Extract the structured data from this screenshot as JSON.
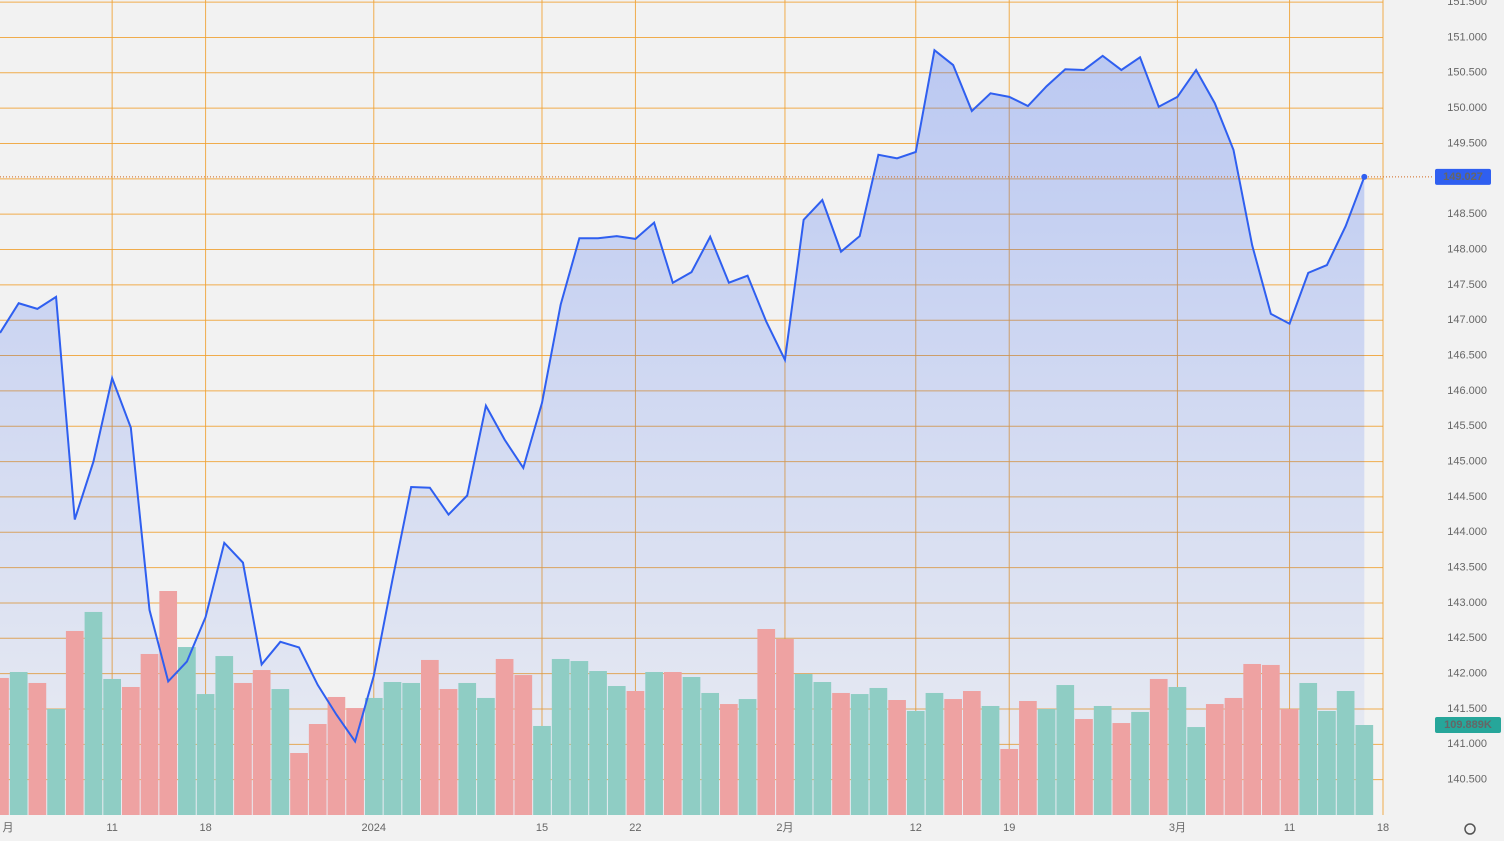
{
  "chart_data": {
    "type": "area",
    "categories": [
      "月",
      null,
      null,
      null,
      null,
      null,
      "11",
      null,
      null,
      null,
      null,
      "18",
      null,
      null,
      null,
      null,
      null,
      null,
      null,
      null,
      "2024",
      null,
      null,
      null,
      null,
      null,
      null,
      null,
      null,
      "15",
      null,
      null,
      null,
      null,
      "22",
      null,
      null,
      null,
      null,
      null,
      null,
      null,
      "2月",
      null,
      null,
      null,
      null,
      null,
      null,
      "12",
      null,
      null,
      null,
      null,
      "19",
      null,
      null,
      null,
      null,
      null,
      null,
      null,
      null,
      "3月",
      null,
      null,
      null,
      null,
      null,
      "11",
      null,
      null,
      null,
      null,
      "18"
    ],
    "series": [
      {
        "color": "#2f5ff0",
        "values": [
          146.82,
          147.24,
          147.16,
          147.33,
          144.18,
          145.0,
          146.18,
          145.48,
          142.9,
          141.89,
          142.17,
          142.8,
          143.85,
          143.57,
          142.13,
          142.45,
          142.37,
          141.84,
          141.42,
          141.04,
          141.97,
          143.33,
          144.64,
          144.63,
          144.25,
          144.52,
          145.79,
          145.31,
          144.91,
          145.83,
          147.22,
          148.16,
          148.16,
          148.19,
          148.15,
          148.38,
          147.53,
          147.68,
          148.18,
          147.53,
          147.63,
          146.98,
          146.44,
          148.42,
          148.7,
          147.97,
          148.19,
          149.34,
          149.29,
          149.38,
          150.82,
          150.61,
          149.96,
          150.21,
          150.16,
          150.03,
          150.31,
          150.55,
          150.54,
          150.74,
          150.54,
          150.72,
          150.02,
          150.16,
          150.54,
          150.07,
          149.41,
          148.06,
          147.09,
          146.95,
          147.67,
          147.78,
          148.33,
          149.027,
          null
        ]
      }
    ],
    "volume": {
      "values": [
        167.3,
        174.6,
        161.2,
        129.4,
        224.7,
        247.9,
        166.1,
        156.3,
        196.6,
        273.5,
        205.1,
        147.7,
        194.1,
        161.2,
        177.0,
        153.8,
        75.7,
        111.1,
        144.1,
        130.6,
        142.9,
        162.4,
        161.2,
        189.3,
        153.8,
        161.2,
        142.9,
        190.5,
        170.9,
        108.7,
        190.5,
        188.0,
        175.8,
        157.5,
        151.4,
        174.6,
        174.6,
        168.5,
        149.0,
        135.5,
        141.6,
        227.1,
        214.9,
        172.2,
        162.4,
        149.0,
        147.7,
        155.1,
        140.4,
        127.0,
        149.0,
        141.6,
        151.4,
        133.1,
        80.6,
        139.2,
        129.4,
        158.7,
        117.2,
        133.1,
        112.3,
        125.8,
        166.1,
        156.3,
        107.4,
        135.5,
        142.9,
        184.4,
        183.2,
        129.4,
        161.2,
        127.0,
        151.4,
        109.889,
        null
      ],
      "colors": [
        "r",
        "g",
        "r",
        "g",
        "r",
        "g",
        "g",
        "r",
        "r",
        "r",
        "g",
        "g",
        "g",
        "r",
        "r",
        "g",
        "r",
        "r",
        "r",
        "r",
        "g",
        "g",
        "g",
        "r",
        "r",
        "g",
        "g",
        "r",
        "r",
        "g",
        "g",
        "g",
        "g",
        "g",
        "r",
        "g",
        "r",
        "g",
        "g",
        "r",
        "g",
        "r",
        "r",
        "g",
        "g",
        "r",
        "g",
        "g",
        "r",
        "g",
        "g",
        "r",
        "r",
        "g",
        "r",
        "r",
        "g",
        "g",
        "r",
        "g",
        "r",
        "g",
        "r",
        "g",
        "g",
        "r",
        "r",
        "r",
        "r",
        "r",
        "g",
        "g",
        "g",
        "g",
        null
      ],
      "up_color": "#8fcdc4",
      "down_color": "#eea2a2",
      "last_label": "109.889K",
      "badge_color": "#26a69a"
    },
    "ylim": [
      140.0,
      151.53
    ],
    "yticks": [
      {
        "value": 140.5,
        "label": "140.500"
      },
      {
        "value": 141,
        "label": "141.000"
      },
      {
        "value": 141.5,
        "label": "141.500"
      },
      {
        "value": 142,
        "label": "142.000"
      },
      {
        "value": 142.5,
        "label": "142.500"
      },
      {
        "value": 143,
        "label": "143.000"
      },
      {
        "value": 143.5,
        "label": "143.500"
      },
      {
        "value": 144,
        "label": "144.000"
      },
      {
        "value": 144.5,
        "label": "144.500"
      },
      {
        "value": 145,
        "label": "145.000"
      },
      {
        "value": 145.5,
        "label": "145.500"
      },
      {
        "value": 146,
        "label": "146.000"
      },
      {
        "value": 146.5,
        "label": "146.500"
      },
      {
        "value": 147,
        "label": "147.000"
      },
      {
        "value": 147.5,
        "label": "147.500"
      },
      {
        "value": 148,
        "label": "148.000"
      },
      {
        "value": 148.5,
        "label": "148.500"
      },
      {
        "value": 149,
        "label": "149.000"
      },
      {
        "value": 149.5,
        "label": "149.500"
      },
      {
        "value": 150,
        "label": "150.000"
      },
      {
        "value": 150.5,
        "label": "150.500"
      },
      {
        "value": 151,
        "label": "151.000"
      },
      {
        "value": 151.5,
        "label": "151.500"
      }
    ],
    "grid": true,
    "grid_color": "#f0a030"
  }
}
